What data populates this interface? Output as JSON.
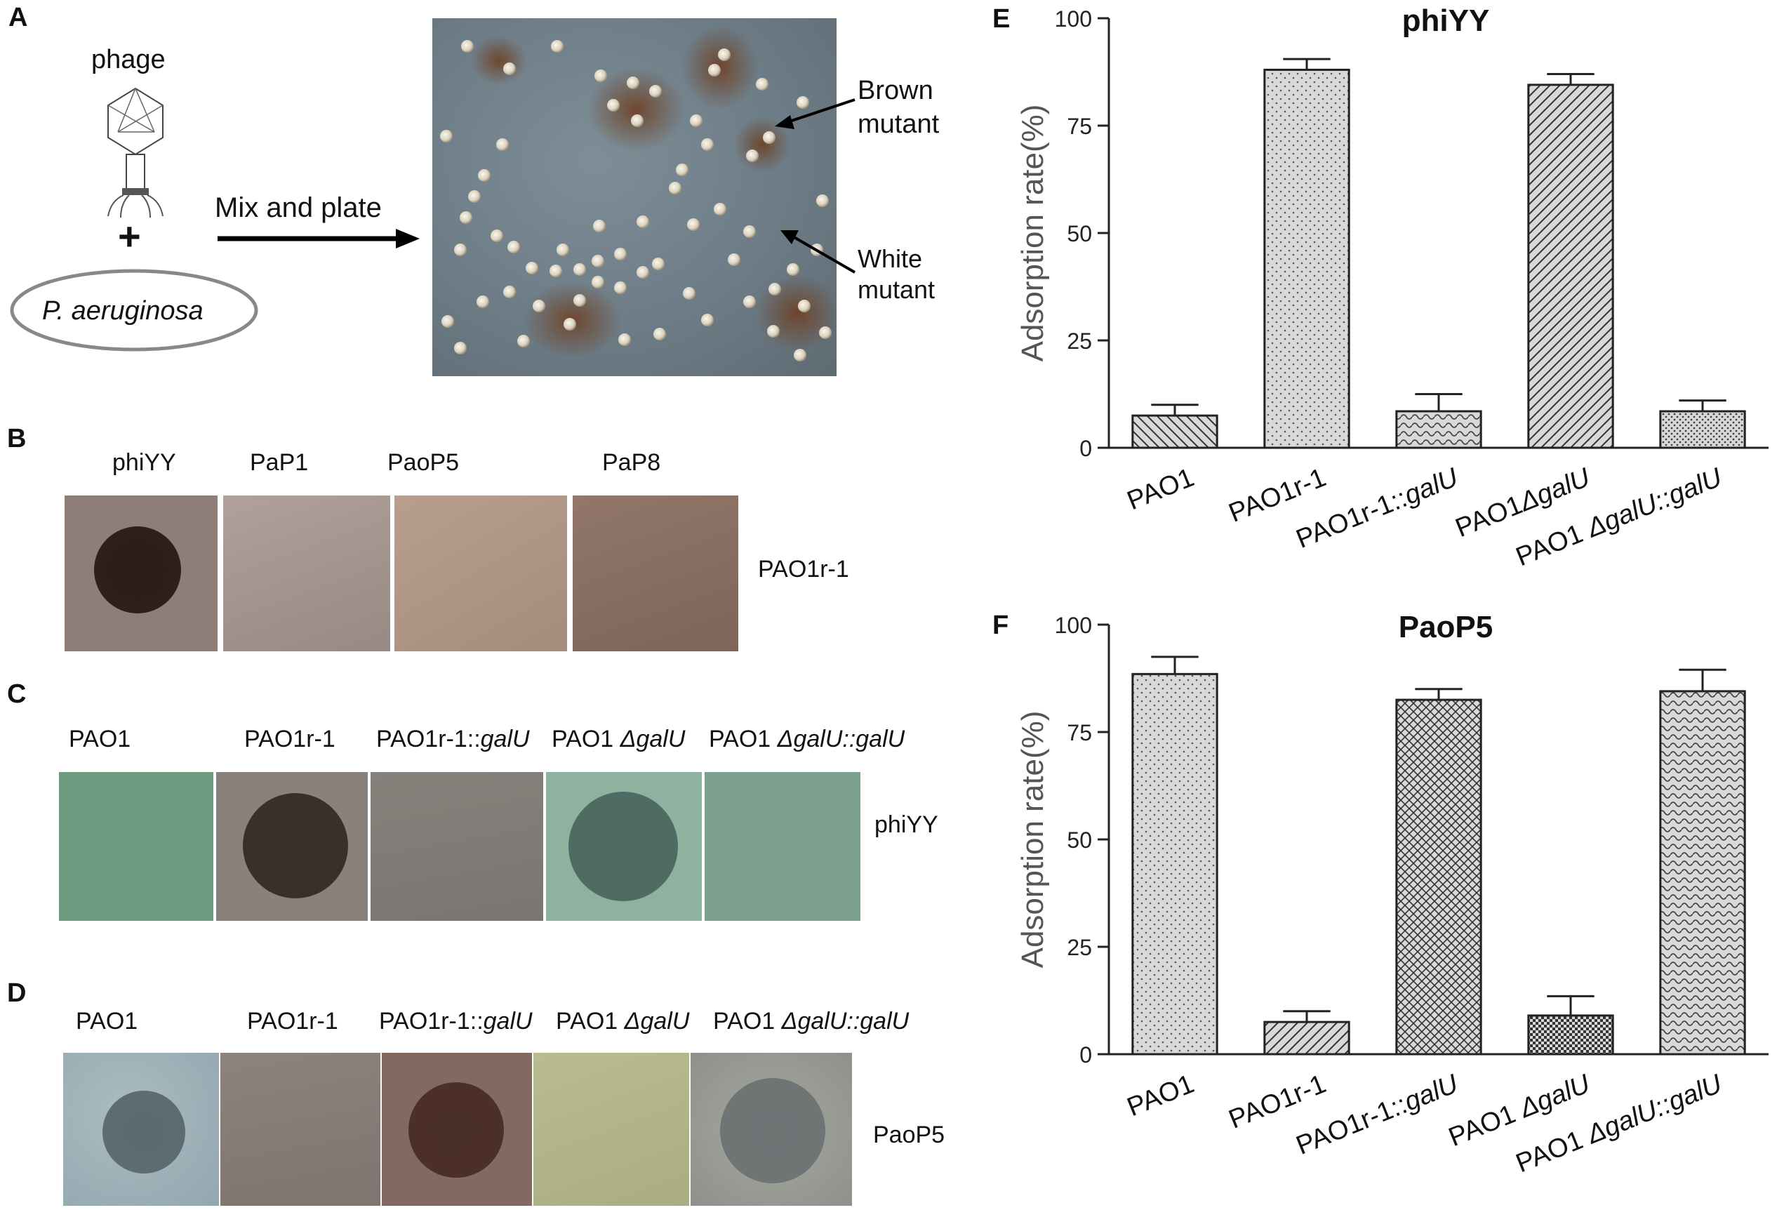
{
  "panel_letters": {
    "a": "A",
    "b": "B",
    "c": "C",
    "d": "D",
    "e": "E",
    "f": "F"
  },
  "panel_a": {
    "phage_label": "phage",
    "plus": "+",
    "bacterium_label": "P. aeruginosa",
    "arrow_label": "Mix and plate",
    "brown_label_1": "Brown",
    "brown_label_2": "mutant",
    "white_label_1": "White",
    "white_label_2": "mutant"
  },
  "panel_b": {
    "column_labels": [
      "phiYY",
      "PaP1",
      "PaoP5",
      "PaP8"
    ],
    "row_label": "PAO1r-1"
  },
  "panel_c": {
    "strain_labels": [
      {
        "plain": "PAO1",
        "italic": ""
      },
      {
        "plain": "PAO1r-1",
        "italic": ""
      },
      {
        "plain": "PAO1r-1::",
        "italic": "galU"
      },
      {
        "plain": "PAO1 ",
        "italic": "ΔgalU"
      },
      {
        "plain": "PAO1 ",
        "italic": "ΔgalU::galU"
      }
    ],
    "row_label": "phiYY"
  },
  "panel_d": {
    "strain_labels": [
      {
        "plain": "PAO1",
        "italic": ""
      },
      {
        "plain": "PAO1r-1",
        "italic": ""
      },
      {
        "plain": "PAO1r-1::",
        "italic": "galU"
      },
      {
        "plain": "PAO1 ",
        "italic": "ΔgalU"
      },
      {
        "plain": "PAO1 ",
        "italic": "ΔgalU::galU"
      }
    ],
    "row_label": "PaoP5"
  },
  "colors": {
    "bar_fill": "#d9d9d9",
    "bar_stroke": "#222222",
    "axis": "#222222",
    "plate_green": "#6f9a82",
    "plate_grey": "#8b8680",
    "plate_brown": "#7e6b60",
    "plate_blue_grey": "#7a8c95"
  },
  "chart_data": [
    {
      "type": "bar",
      "title": "phiYY",
      "ylabel": "Adsorption rate(%)",
      "xlabel": "",
      "ylim": [
        0,
        100
      ],
      "yticks": [
        0,
        25,
        50,
        75,
        100
      ],
      "categories": [
        {
          "plain": "PAO1",
          "italic": ""
        },
        {
          "plain": "PAO1r-1",
          "italic": ""
        },
        {
          "plain": "PAO1r-1::",
          "italic": "galU"
        },
        {
          "plain": "PAO1",
          "italic": "ΔgalU"
        },
        {
          "plain": "PAO1 ",
          "italic": "ΔgalU::galU"
        }
      ],
      "values": [
        7.5,
        88,
        8.5,
        84.5,
        8.5
      ],
      "errors": [
        2.5,
        2.5,
        4,
        2.5,
        2.5
      ],
      "patterns": [
        "diag-back",
        "dots",
        "wave",
        "diag-fwd",
        "dots-dense"
      ],
      "grid": false
    },
    {
      "type": "bar",
      "title": "PaoP5",
      "ylabel": "Adsorption rate(%)",
      "xlabel": "",
      "ylim": [
        0,
        100
      ],
      "yticks": [
        0,
        25,
        50,
        75,
        100
      ],
      "categories": [
        {
          "plain": "PAO1",
          "italic": ""
        },
        {
          "plain": "PAO1r-1",
          "italic": ""
        },
        {
          "plain": "PAO1r-1::",
          "italic": "galU"
        },
        {
          "plain": "PAO1 ",
          "italic": "ΔgalU"
        },
        {
          "plain": "PAO1 ",
          "italic": "ΔgalU::galU"
        }
      ],
      "values": [
        88.5,
        7.5,
        82.5,
        9,
        84.5
      ],
      "errors": [
        4,
        2.5,
        2.5,
        4.5,
        5
      ],
      "patterns": [
        "dots",
        "diag-fwd",
        "cross",
        "checker",
        "wave"
      ],
      "grid": false
    }
  ]
}
